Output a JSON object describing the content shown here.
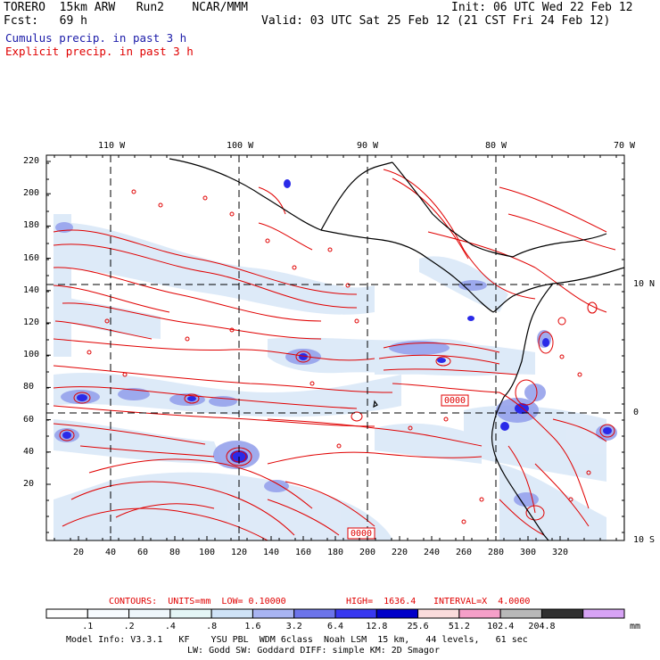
{
  "header": {
    "left_line1": "TORERO  15km ARW   Run2    NCAR/MMM",
    "right_line1": "Init: 06 UTC Wed 22 Feb 12",
    "left_line2": "Fcst:   69 h",
    "right_line2": "Valid: 03 UTC Sat 25 Feb 12 (21 CST Fri 24 Feb 12)",
    "field1": "Cumulus precip. in past 3 h",
    "field2": "Explicit precip. in past 3 h"
  },
  "map": {
    "top_lon_labels": [
      "110 W",
      "100 W",
      "90 W",
      "80 W",
      "70 W"
    ],
    "left_tick_labels": [
      "220",
      "200",
      "180",
      "160",
      "140",
      "120",
      "100",
      "80",
      "60",
      "40",
      "20"
    ],
    "bottom_tick_labels": [
      "20",
      "40",
      "60",
      "80",
      "100",
      "120",
      "140",
      "160",
      "180",
      "200",
      "220",
      "240",
      "260",
      "280",
      "300",
      "320"
    ],
    "right_lat_labels": [
      "10 N",
      "0",
      "10 S"
    ],
    "contour_boxes": [
      "0000",
      "0000"
    ],
    "colors": {
      "contour": "#e00000",
      "coast": "#000000",
      "light_blue": "#cfe0f5",
      "mid_blue": "#8d98e6",
      "dark_blue": "#2a2ae8"
    }
  },
  "contours_info": {
    "label": "CONTOURS:  UNITS=mm  LOW= 0.10000",
    "high": "HIGH=  1636.4",
    "interval": "INTERVAL=X  4.0000"
  },
  "colorbar": {
    "bins": [
      {
        "color": "#ffffff"
      },
      {
        "color": "#f7fbff"
      },
      {
        "color": "#eef6fb"
      },
      {
        "color": "#e4f6f6"
      },
      {
        "color": "#cfe3f7"
      },
      {
        "color": "#a8b4f2"
      },
      {
        "color": "#6c74ea"
      },
      {
        "color": "#3838f0"
      },
      {
        "color": "#0000c8"
      },
      {
        "color": "#fadcdc"
      },
      {
        "color": "#f59fc8"
      },
      {
        "color": "#b8b8b8"
      },
      {
        "color": "#303030"
      },
      {
        "color": "#d7a3f5"
      }
    ],
    "labels": [
      ".1",
      ".2",
      ".4",
      ".8",
      "1.6",
      "3.2",
      "6.4",
      "12.8",
      "25.6",
      "51.2",
      "102.4",
      "204.8"
    ],
    "unit": "mm"
  },
  "footer": {
    "line1": "Model Info: V3.3.1   KF    YSU PBL  WDM 6class  Noah LSM  15 km,   44 levels,   61 sec",
    "line2": "LW: Godd SW: Goddard DIFF: simple KM: 2D Smagor"
  }
}
